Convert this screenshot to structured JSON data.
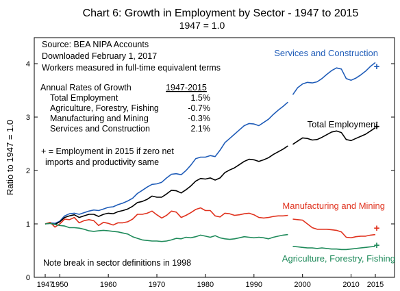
{
  "chart_data": {
    "type": "line",
    "title": "Chart 6:  Growth in Employment by Sector - 1947 to 2015",
    "subtitle": "1947 = 1.0",
    "ylabel": "Ratio to 1947 = 1.0",
    "xlim": [
      1947,
      2016
    ],
    "ylim": [
      0,
      4.5
    ],
    "x_ticks": [
      1947,
      1950,
      1960,
      1970,
      1980,
      1990,
      2000,
      2010,
      2015
    ],
    "x_tick_labels": [
      "1947",
      "1950",
      "1960",
      "1970",
      "1980",
      "1990",
      "2000",
      "2010",
      "2015"
    ],
    "y_ticks": [
      0,
      1,
      2,
      3,
      4
    ],
    "y_tick_labels": [
      "0",
      "1",
      "2",
      "3",
      "4"
    ],
    "grid": false,
    "break_year": 1998,
    "notes": {
      "source": "Source: BEA NIPA Accounts",
      "downloaded": "Downloaded February 1, 2017",
      "workers": "Workers measured in full-time equivalent terms",
      "rates_header": "Annual Rates of Growth",
      "rates_period": "1947-2015",
      "rates": [
        {
          "label": "Total Employment",
          "value": "1.5%"
        },
        {
          "label": "Agriculture, Forestry, Fishing",
          "value": "-0.7%"
        },
        {
          "label": "Manufacturing and Mining",
          "value": "-0.3%"
        },
        {
          "label": "Services and Construction",
          "value": "2.1%"
        }
      ],
      "plus_note_line1": "+ =  Employment in 2015 if zero net",
      "plus_note_line2": "imports and productivity same",
      "break_note": "Note break in sector definitions in 1998"
    },
    "series": [
      {
        "name": "Services and Construction",
        "color": "#1f5cb8",
        "x": [
          1947,
          1948,
          1949,
          1950,
          1951,
          1952,
          1953,
          1954,
          1955,
          1956,
          1957,
          1958,
          1959,
          1960,
          1961,
          1962,
          1963,
          1964,
          1965,
          1966,
          1967,
          1968,
          1969,
          1970,
          1971,
          1972,
          1973,
          1974,
          1975,
          1976,
          1977,
          1978,
          1979,
          1980,
          1981,
          1982,
          1983,
          1984,
          1985,
          1986,
          1987,
          1988,
          1989,
          1990,
          1991,
          1992,
          1993,
          1994,
          1995,
          1996,
          1997,
          1998,
          1999,
          2000,
          2001,
          2002,
          2003,
          2004,
          2005,
          2006,
          2007,
          2008,
          2009,
          2010,
          2011,
          2012,
          2013,
          2014,
          2015
        ],
        "values": [
          1.0,
          1.02,
          1.01,
          1.05,
          1.15,
          1.19,
          1.2,
          1.18,
          1.21,
          1.24,
          1.26,
          1.25,
          1.28,
          1.31,
          1.32,
          1.36,
          1.39,
          1.43,
          1.48,
          1.57,
          1.63,
          1.69,
          1.74,
          1.75,
          1.78,
          1.86,
          1.93,
          1.94,
          1.92,
          2.0,
          2.1,
          2.22,
          2.25,
          2.25,
          2.28,
          2.26,
          2.38,
          2.52,
          2.6,
          2.68,
          2.76,
          2.84,
          2.88,
          2.87,
          2.84,
          2.9,
          2.96,
          3.05,
          3.13,
          3.2,
          3.28,
          3.42,
          3.55,
          3.62,
          3.65,
          3.64,
          3.66,
          3.72,
          3.8,
          3.87,
          3.92,
          3.9,
          3.72,
          3.69,
          3.73,
          3.79,
          3.86,
          3.95,
          4.02
        ],
        "marker_2015": 3.95
      },
      {
        "name": "Total Employment",
        "color": "#000000",
        "x": [
          1947,
          1948,
          1949,
          1950,
          1951,
          1952,
          1953,
          1954,
          1955,
          1956,
          1957,
          1958,
          1959,
          1960,
          1961,
          1962,
          1963,
          1964,
          1965,
          1966,
          1967,
          1968,
          1969,
          1970,
          1971,
          1972,
          1973,
          1974,
          1975,
          1976,
          1977,
          1978,
          1979,
          1980,
          1981,
          1982,
          1983,
          1984,
          1985,
          1986,
          1987,
          1988,
          1989,
          1990,
          1991,
          1992,
          1993,
          1994,
          1995,
          1996,
          1997,
          1998,
          1999,
          2000,
          2001,
          2002,
          2003,
          2004,
          2005,
          2006,
          2007,
          2008,
          2009,
          2010,
          2011,
          2012,
          2013,
          2014,
          2015
        ],
        "values": [
          1.0,
          1.01,
          0.99,
          1.04,
          1.12,
          1.15,
          1.17,
          1.12,
          1.15,
          1.18,
          1.18,
          1.14,
          1.18,
          1.2,
          1.19,
          1.23,
          1.25,
          1.28,
          1.33,
          1.4,
          1.42,
          1.46,
          1.52,
          1.5,
          1.5,
          1.56,
          1.63,
          1.62,
          1.58,
          1.64,
          1.71,
          1.8,
          1.85,
          1.84,
          1.86,
          1.82,
          1.86,
          1.96,
          2.01,
          2.05,
          2.11,
          2.17,
          2.21,
          2.2,
          2.17,
          2.2,
          2.24,
          2.3,
          2.35,
          2.4,
          2.46,
          2.49,
          2.55,
          2.61,
          2.6,
          2.57,
          2.58,
          2.62,
          2.67,
          2.72,
          2.74,
          2.71,
          2.58,
          2.56,
          2.6,
          2.64,
          2.68,
          2.74,
          2.8
        ],
        "marker_2015": 2.83
      },
      {
        "name": "Manufacturing and Mining",
        "color": "#e0321e",
        "x": [
          1947,
          1948,
          1949,
          1950,
          1951,
          1952,
          1953,
          1954,
          1955,
          1956,
          1957,
          1958,
          1959,
          1960,
          1961,
          1962,
          1963,
          1964,
          1965,
          1966,
          1967,
          1968,
          1969,
          1970,
          1971,
          1972,
          1973,
          1974,
          1975,
          1976,
          1977,
          1978,
          1979,
          1980,
          1981,
          1982,
          1983,
          1984,
          1985,
          1986,
          1987,
          1988,
          1989,
          1990,
          1991,
          1992,
          1993,
          1994,
          1995,
          1996,
          1997,
          1998,
          1999,
          2000,
          2001,
          2002,
          2003,
          2004,
          2005,
          2006,
          2007,
          2008,
          2009,
          2010,
          2011,
          2012,
          2013,
          2014,
          2015
        ],
        "values": [
          1.0,
          1.03,
          0.94,
          1.0,
          1.09,
          1.08,
          1.12,
          1.02,
          1.06,
          1.08,
          1.06,
          0.97,
          1.03,
          1.01,
          0.98,
          1.02,
          1.02,
          1.04,
          1.09,
          1.18,
          1.18,
          1.2,
          1.24,
          1.17,
          1.11,
          1.16,
          1.24,
          1.22,
          1.12,
          1.16,
          1.21,
          1.27,
          1.3,
          1.25,
          1.25,
          1.15,
          1.13,
          1.2,
          1.19,
          1.16,
          1.17,
          1.19,
          1.2,
          1.17,
          1.12,
          1.11,
          1.12,
          1.14,
          1.15,
          1.15,
          1.16,
          1.09,
          1.08,
          1.07,
          1.0,
          0.93,
          0.9,
          0.9,
          0.9,
          0.89,
          0.88,
          0.85,
          0.75,
          0.74,
          0.76,
          0.77,
          0.77,
          0.79,
          0.8
        ],
        "marker_2015": 0.92
      },
      {
        "name": "Agriculture, Forestry, Fishing",
        "color": "#1e8a5a",
        "x": [
          1947,
          1948,
          1949,
          1950,
          1951,
          1952,
          1953,
          1954,
          1955,
          1956,
          1957,
          1958,
          1959,
          1960,
          1961,
          1962,
          1963,
          1964,
          1965,
          1966,
          1967,
          1968,
          1969,
          1970,
          1971,
          1972,
          1973,
          1974,
          1975,
          1976,
          1977,
          1978,
          1979,
          1980,
          1981,
          1982,
          1983,
          1984,
          1985,
          1986,
          1987,
          1988,
          1989,
          1990,
          1991,
          1992,
          1993,
          1994,
          1995,
          1996,
          1997,
          1998,
          1999,
          2000,
          2001,
          2002,
          2003,
          2004,
          2005,
          2006,
          2007,
          2008,
          2009,
          2010,
          2011,
          2012,
          2013,
          2014,
          2015
        ],
        "values": [
          1.0,
          1.01,
          0.99,
          0.97,
          0.96,
          0.93,
          0.93,
          0.92,
          0.9,
          0.87,
          0.86,
          0.87,
          0.88,
          0.87,
          0.86,
          0.85,
          0.83,
          0.81,
          0.76,
          0.73,
          0.7,
          0.69,
          0.68,
          0.68,
          0.67,
          0.68,
          0.7,
          0.73,
          0.72,
          0.75,
          0.74,
          0.76,
          0.79,
          0.77,
          0.75,
          0.78,
          0.74,
          0.72,
          0.71,
          0.72,
          0.74,
          0.76,
          0.75,
          0.74,
          0.75,
          0.74,
          0.72,
          0.75,
          0.77,
          0.79,
          0.8,
          0.58,
          0.57,
          0.56,
          0.55,
          0.55,
          0.54,
          0.55,
          0.54,
          0.53,
          0.53,
          0.52,
          0.52,
          0.53,
          0.54,
          0.55,
          0.56,
          0.57,
          0.58
        ],
        "marker_2015": 0.6
      }
    ]
  }
}
